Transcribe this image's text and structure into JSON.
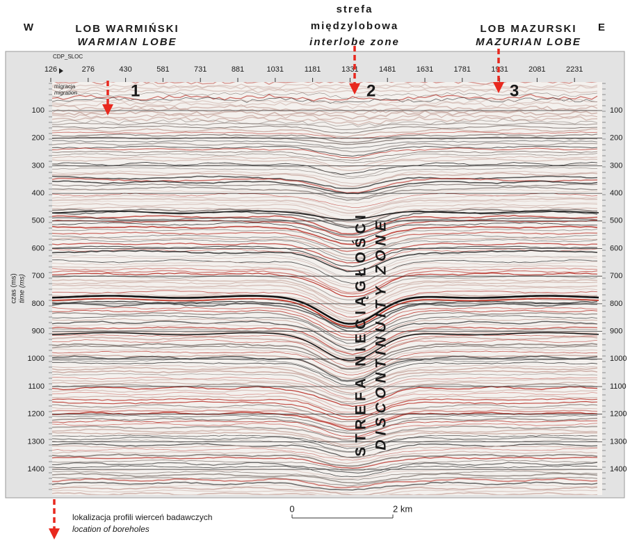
{
  "header": {
    "west": "W",
    "east": "E",
    "left_lobe": {
      "pl": "LOB WARMIŃSKI",
      "en": "WARMIAN LOBE"
    },
    "middle_zone": {
      "pl_line1": "strefa",
      "pl_line2": "międzylobowa",
      "en": "interlobe zone"
    },
    "right_lobe": {
      "pl": "LOB MAZURSKI",
      "en": "MAZURIAN LOBE"
    }
  },
  "section": {
    "cdp_label": "CDP_SLOC",
    "cdp_ticks": [
      126,
      276,
      430,
      581,
      731,
      881,
      1031,
      1181,
      1331,
      1481,
      1631,
      1781,
      1931,
      2081,
      2231
    ],
    "time_ticks": [
      100,
      200,
      300,
      400,
      500,
      600,
      700,
      800,
      900,
      1000,
      1100,
      1200,
      1300,
      1400
    ],
    "axis_label_pl": "czas (ms)",
    "axis_label_en": "time (ms)",
    "process_pl": "migracja",
    "process_en": "migration",
    "markers": [
      "1",
      "2",
      "3"
    ],
    "zone_pl": "STREFA NIECIĄGŁOŚCI",
    "zone_en": "DISCONTINUITY ZONE"
  },
  "scale_bar": {
    "start": "0",
    "end": "2 km"
  },
  "legend": {
    "pl": "lokalizacja profili wierceń badawczych",
    "en": "location of boreholes"
  }
}
